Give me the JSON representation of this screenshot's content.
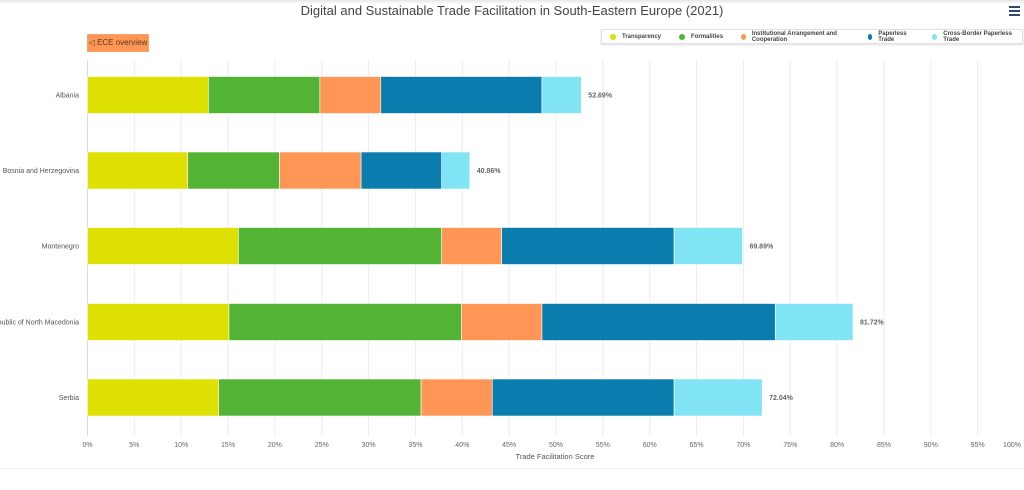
{
  "title": "Digital and Sustainable Trade Facilitation in South-Eastern Europe (2021)",
  "ece_button": "◁ ECE overview",
  "menu_icon": "hamburger-menu-icon",
  "chart_data": {
    "type": "bar",
    "orientation": "horizontal",
    "stacked": true,
    "title": "Digital and Sustainable Trade Facilitation in South-Eastern Europe (2021)",
    "xlabel": "Trade Facilitation Score",
    "ylabel": "",
    "xlim": [
      0,
      100
    ],
    "x_ticks": [
      "0%",
      "5%",
      "10%",
      "15%",
      "20%",
      "25%",
      "30%",
      "35%",
      "40%",
      "45%",
      "50%",
      "55%",
      "60%",
      "65%",
      "70%",
      "75%",
      "80%",
      "85%",
      "90%",
      "95%",
      "100%"
    ],
    "grid": true,
    "legend_placement": "top-right",
    "categories": [
      "Albania",
      "Bosnia and Herzegovina",
      "Montenegro",
      "Republic of North Macedonia",
      "Serbia"
    ],
    "series": [
      {
        "name": "Transparency",
        "color": "#dde000",
        "values": [
          12.9,
          10.7,
          16.1,
          15.1,
          14.0
        ]
      },
      {
        "name": "Formalities",
        "color": "#52b334",
        "values": [
          11.9,
          9.8,
          21.7,
          24.8,
          21.6
        ]
      },
      {
        "name": "Institutional Arrangement and Cooperation",
        "color": "#ff9655",
        "values": [
          6.5,
          8.7,
          6.4,
          8.6,
          7.6
        ]
      },
      {
        "name": "Paperless Trade",
        "color": "#0a7cad",
        "values": [
          17.2,
          8.6,
          18.4,
          24.9,
          19.4
        ]
      },
      {
        "name": "Cross-Border Paperless Trade",
        "color": "#80e4f5",
        "values": [
          4.2,
          3.0,
          7.3,
          8.3,
          9.4
        ]
      }
    ],
    "totals": [
      "52.69%",
      "40.86%",
      "69.89%",
      "81.72%",
      "72.04%"
    ]
  }
}
